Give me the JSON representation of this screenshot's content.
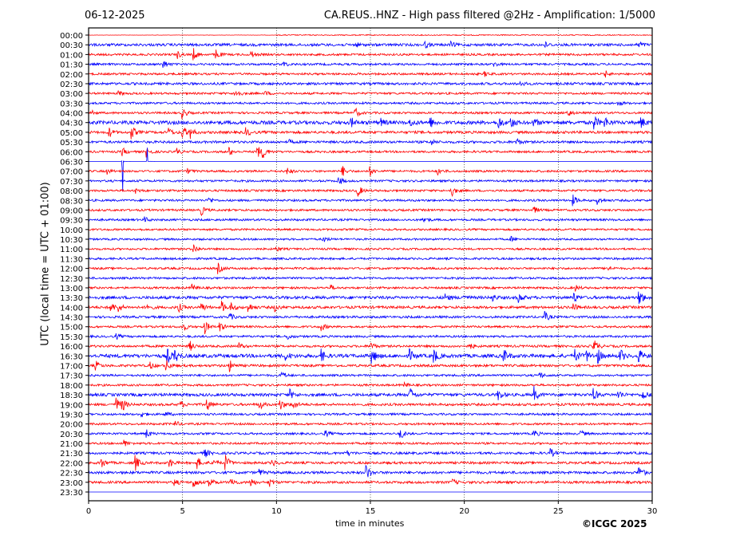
{
  "chart_data": {
    "type": "line",
    "title_left": "06-12-2025",
    "title_right": "CA.REUS..HNZ - High pass filtered @2Hz - Amplification: 1/5000",
    "xlabel": "time in minutes",
    "ylabel": "UTC (local time = UTC + 01:00)",
    "xlim": [
      0,
      30
    ],
    "xticks": [
      "0",
      "5",
      "10",
      "15",
      "20",
      "25",
      "30"
    ],
    "grid": "vertical dotted at 5-minute intervals",
    "row_labels": [
      "00:00",
      "00:30",
      "01:00",
      "01:30",
      "02:00",
      "02:30",
      "03:00",
      "03:30",
      "04:00",
      "04:30",
      "05:00",
      "05:30",
      "06:00",
      "06:30",
      "07:00",
      "07:30",
      "08:00",
      "08:30",
      "09:00",
      "09:30",
      "10:00",
      "10:30",
      "11:00",
      "11:30",
      "12:00",
      "12:30",
      "13:00",
      "13:30",
      "14:00",
      "14:30",
      "15:00",
      "15:30",
      "16:00",
      "16:30",
      "17:00",
      "17:30",
      "18:00",
      "18:30",
      "19:00",
      "19:30",
      "20:00",
      "20:30",
      "21:00",
      "21:30",
      "22:00",
      "22:30",
      "23:00",
      "23:30"
    ],
    "row_colors": [
      "#ff0000",
      "#0000ff"
    ],
    "noise_levels": [
      0.6,
      1.6,
      1.3,
      1.3,
      1.3,
      1.5,
      1.3,
      1.3,
      1.3,
      2.2,
      1.6,
      1.5,
      1.3,
      0,
      1.3,
      1.3,
      1.3,
      1.3,
      1.3,
      1.3,
      1.2,
      1.2,
      1.2,
      1.3,
      1.3,
      1.3,
      1.3,
      1.8,
      1.6,
      1.4,
      1.3,
      1.3,
      1.4,
      2.2,
      1.5,
      1.3,
      1.3,
      1.8,
      1.5,
      1.3,
      1.3,
      1.3,
      1.3,
      1.5,
      1.5,
      1.6,
      1.5,
      0
    ],
    "events": [
      [
        1,
        14.2,
        3
      ],
      [
        1,
        17.9,
        4
      ],
      [
        1,
        19.3,
        3
      ],
      [
        1,
        24.3,
        3
      ],
      [
        1,
        29.3,
        4
      ],
      [
        2,
        4.7,
        5
      ],
      [
        2,
        5.6,
        7
      ],
      [
        2,
        6.8,
        6
      ],
      [
        2,
        8.6,
        6
      ],
      [
        3,
        4,
        5
      ],
      [
        3,
        10.4,
        3
      ],
      [
        3,
        21.6,
        3
      ],
      [
        4,
        21.1,
        3
      ],
      [
        4,
        27.5,
        4
      ],
      [
        5,
        23,
        3
      ],
      [
        6,
        1.6,
        3
      ],
      [
        6,
        7.8,
        8
      ],
      [
        6,
        9.4,
        3
      ],
      [
        7,
        28.2,
        3
      ],
      [
        8,
        0.2,
        2
      ],
      [
        8,
        5,
        7
      ],
      [
        8,
        14.2,
        6
      ],
      [
        8,
        25.5,
        5
      ],
      [
        9,
        14,
        5
      ],
      [
        9,
        15.6,
        4
      ],
      [
        9,
        17.1,
        5
      ],
      [
        9,
        18.2,
        6
      ],
      [
        9,
        21.8,
        8
      ],
      [
        9,
        22.5,
        6
      ],
      [
        9,
        23.7,
        5
      ],
      [
        9,
        26.9,
        9
      ],
      [
        9,
        27.5,
        6
      ],
      [
        9,
        29.4,
        7
      ],
      [
        10,
        1.1,
        6
      ],
      [
        10,
        2.3,
        8
      ],
      [
        10,
        4.2,
        7
      ],
      [
        10,
        5,
        8
      ],
      [
        10,
        5.4,
        7
      ],
      [
        10,
        8.4,
        5
      ],
      [
        11,
        10.6,
        3
      ],
      [
        11,
        18.2,
        4
      ],
      [
        11,
        22.8,
        4
      ],
      [
        12,
        1.8,
        5
      ],
      [
        12,
        3.1,
        6
      ],
      [
        12,
        4.7,
        4
      ],
      [
        12,
        7.5,
        5
      ],
      [
        12,
        9,
        8
      ],
      [
        12,
        9.3,
        7
      ],
      [
        13,
        1.8,
        45
      ],
      [
        13,
        3.1,
        40
      ],
      [
        14,
        1,
        3
      ],
      [
        14,
        5.3,
        3
      ],
      [
        14,
        10.6,
        4
      ],
      [
        14,
        13.5,
        7
      ],
      [
        14,
        15,
        5
      ],
      [
        14,
        18.6,
        4
      ],
      [
        15,
        13.3,
        6
      ],
      [
        16,
        14.3,
        9
      ],
      [
        16,
        19.3,
        8
      ],
      [
        16,
        2.5,
        3
      ],
      [
        17,
        6.4,
        4
      ],
      [
        17,
        25.8,
        6
      ],
      [
        17,
        27.1,
        5
      ],
      [
        18,
        6,
        6
      ],
      [
        18,
        23.7,
        4
      ],
      [
        19,
        3,
        3
      ],
      [
        19,
        17.8,
        5
      ],
      [
        21,
        12.5,
        4
      ],
      [
        21,
        22.5,
        3
      ],
      [
        22,
        5.6,
        6
      ],
      [
        22,
        10,
        3
      ],
      [
        24,
        6.9,
        6
      ],
      [
        24,
        27.6,
        4
      ],
      [
        26,
        5.5,
        5
      ],
      [
        26,
        12.9,
        3
      ],
      [
        26,
        25.9,
        4
      ],
      [
        27,
        19,
        5
      ],
      [
        27,
        19.9,
        4
      ],
      [
        27,
        21.5,
        4
      ],
      [
        27,
        22.9,
        6
      ],
      [
        27,
        25.8,
        7
      ],
      [
        27,
        29.3,
        11
      ],
      [
        28,
        1.2,
        6
      ],
      [
        28,
        1.6,
        5
      ],
      [
        28,
        3.1,
        5
      ],
      [
        28,
        4.8,
        5
      ],
      [
        28,
        6,
        6
      ],
      [
        28,
        7.1,
        7
      ],
      [
        28,
        7.6,
        5
      ],
      [
        28,
        8.5,
        6
      ],
      [
        28,
        9.9,
        5
      ],
      [
        28,
        25.8,
        5
      ],
      [
        29,
        7.5,
        5
      ],
      [
        29,
        24.3,
        6
      ],
      [
        30,
        5,
        7
      ],
      [
        30,
        6.2,
        8
      ],
      [
        30,
        7,
        6
      ],
      [
        30,
        12.4,
        5
      ],
      [
        31,
        1.5,
        3
      ],
      [
        31,
        10.6,
        4
      ],
      [
        32,
        5.4,
        6
      ],
      [
        32,
        8,
        4
      ],
      [
        32,
        15,
        6
      ],
      [
        32,
        20.3,
        4
      ],
      [
        32,
        26.9,
        9
      ],
      [
        33,
        4.2,
        9
      ],
      [
        33,
        4.6,
        7
      ],
      [
        33,
        10.5,
        5
      ],
      [
        33,
        12.4,
        7
      ],
      [
        33,
        15.1,
        9
      ],
      [
        33,
        17.1,
        7
      ],
      [
        33,
        18.4,
        8
      ],
      [
        33,
        22.1,
        8
      ],
      [
        33,
        25.9,
        8
      ],
      [
        33,
        26.5,
        7
      ],
      [
        33,
        27.1,
        9
      ],
      [
        33,
        28.3,
        8
      ],
      [
        33,
        29.3,
        8
      ],
      [
        34,
        0.4,
        5
      ],
      [
        34,
        4.1,
        8
      ],
      [
        34,
        7.5,
        7
      ],
      [
        34,
        3.3,
        4
      ],
      [
        35,
        10.3,
        5
      ],
      [
        35,
        24,
        4
      ],
      [
        36,
        16.8,
        3
      ],
      [
        37,
        10.7,
        6
      ],
      [
        37,
        17.1,
        9
      ],
      [
        37,
        21.8,
        7
      ],
      [
        37,
        23.7,
        10
      ],
      [
        37,
        26.9,
        7
      ],
      [
        37,
        28.2,
        6
      ],
      [
        37,
        29.5,
        7
      ],
      [
        38,
        1.5,
        8
      ],
      [
        38,
        1.8,
        7
      ],
      [
        38,
        4.9,
        4
      ],
      [
        38,
        6.3,
        8
      ],
      [
        38,
        9.1,
        6
      ],
      [
        38,
        10.2,
        7
      ],
      [
        38,
        10.9,
        6
      ],
      [
        39,
        2.8,
        4
      ],
      [
        39,
        4.1,
        3
      ],
      [
        40,
        4.6,
        4
      ],
      [
        41,
        3.1,
        5
      ],
      [
        41,
        12.6,
        4
      ],
      [
        41,
        16.6,
        7
      ],
      [
        41,
        23.7,
        5
      ],
      [
        41,
        26.2,
        4
      ],
      [
        42,
        1.9,
        4
      ],
      [
        43,
        6.2,
        5
      ],
      [
        43,
        13.8,
        3
      ],
      [
        43,
        24.6,
        5
      ],
      [
        44,
        0.7,
        6
      ],
      [
        44,
        2.5,
        9
      ],
      [
        44,
        4.3,
        6
      ],
      [
        44,
        5.8,
        7
      ],
      [
        44,
        6.6,
        6
      ],
      [
        44,
        7.3,
        9
      ],
      [
        44,
        9.8,
        4
      ],
      [
        45,
        14.8,
        9
      ],
      [
        45,
        29.3,
        9
      ],
      [
        45,
        9.1,
        4
      ],
      [
        46,
        4.6,
        4
      ],
      [
        46,
        5.6,
        7
      ],
      [
        46,
        6.4,
        8
      ],
      [
        46,
        7.6,
        6
      ],
      [
        46,
        8.6,
        7
      ],
      [
        46,
        9.6,
        6
      ],
      [
        46,
        19.3,
        5
      ]
    ]
  }
}
